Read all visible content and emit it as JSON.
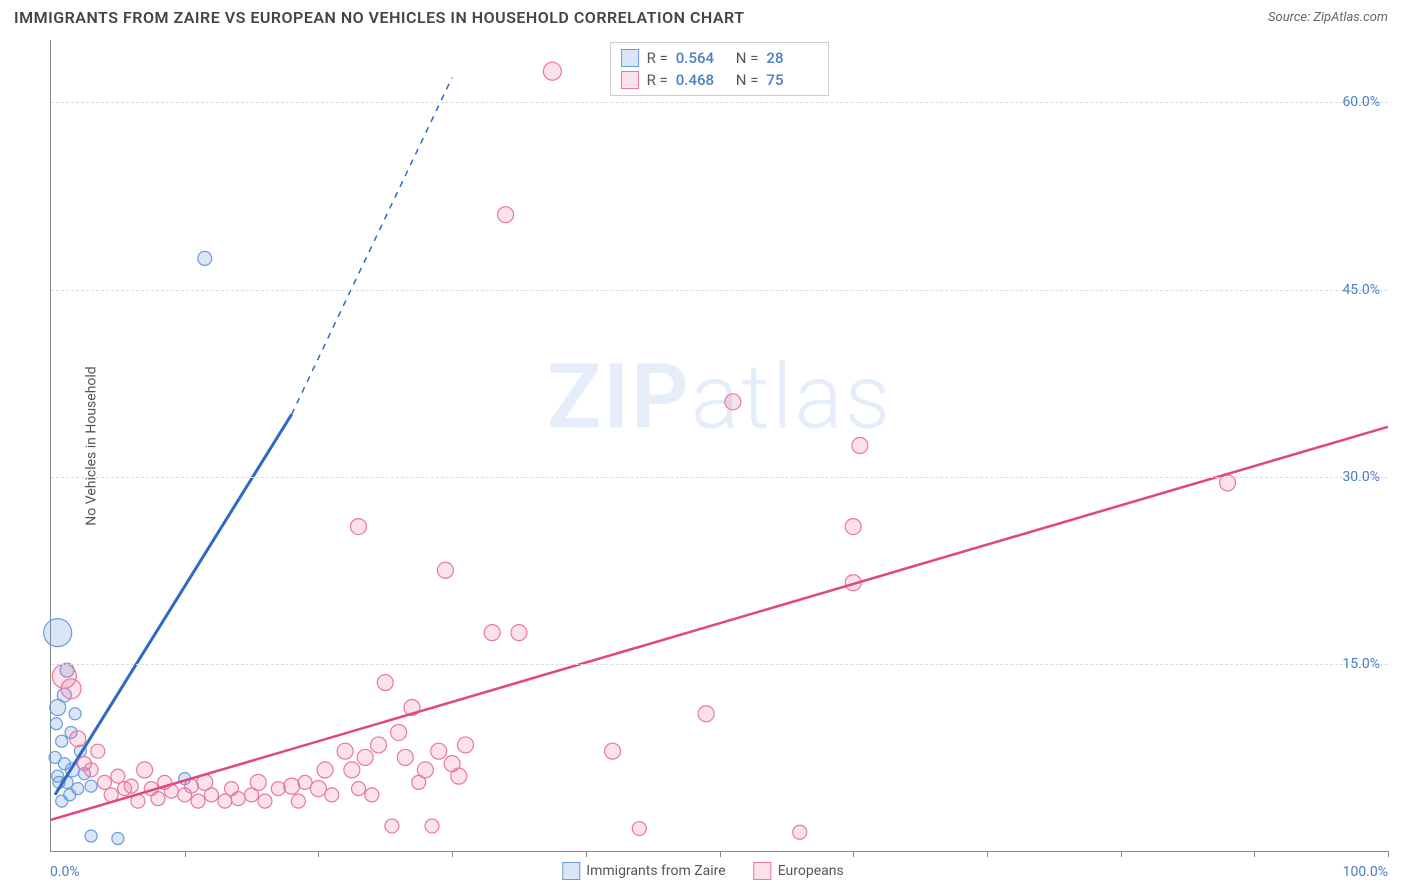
{
  "header": {
    "title": "IMMIGRANTS FROM ZAIRE VS EUROPEAN NO VEHICLES IN HOUSEHOLD CORRELATION CHART",
    "source_label": "Source: ZipAtlas.com"
  },
  "chart": {
    "type": "scatter",
    "ylabel": "No Vehicles in Household",
    "x_min_label": "0.0%",
    "x_max_label": "100.0%",
    "xlim": [
      0,
      100
    ],
    "ylim": [
      0,
      65
    ],
    "y_ticks": [
      {
        "v": 15,
        "label": "15.0%"
      },
      {
        "v": 30,
        "label": "30.0%"
      },
      {
        "v": 45,
        "label": "45.0%"
      },
      {
        "v": 60,
        "label": "60.0%"
      }
    ],
    "x_tick_marks": [
      10,
      20,
      30,
      40,
      50,
      60,
      70,
      80,
      90,
      100
    ],
    "background_color": "#ffffff",
    "grid_color": "#dddddd",
    "axis_color": "#888888",
    "tick_label_color": "#4a7fc4",
    "watermark": {
      "prefix": "ZIP",
      "suffix": "atlas"
    },
    "series": [
      {
        "id": "zaire",
        "legend_label": "Immigrants from Zaire",
        "marker_fill": "rgba(106,156,220,0.25)",
        "marker_stroke": "#6a9cdc",
        "line_color": "#2e6bc0",
        "line_width": 3,
        "dash_after": true,
        "r_label": "R =",
        "r_value": "0.564",
        "n_label": "N =",
        "n_value": "28",
        "trend": {
          "x1": 0.3,
          "y1": 4.5,
          "x2": 18,
          "y2": 35,
          "x3": 30,
          "y3": 62
        },
        "points": [
          {
            "x": 0.5,
            "y": 17.5,
            "r": 14
          },
          {
            "x": 1.2,
            "y": 14.5,
            "r": 7
          },
          {
            "x": 1.0,
            "y": 12.5,
            "r": 7
          },
          {
            "x": 0.5,
            "y": 11.5,
            "r": 8
          },
          {
            "x": 1.8,
            "y": 11.0,
            "r": 6
          },
          {
            "x": 0.4,
            "y": 10.2,
            "r": 6
          },
          {
            "x": 1.5,
            "y": 9.5,
            "r": 6
          },
          {
            "x": 0.8,
            "y": 8.8,
            "r": 6
          },
          {
            "x": 2.2,
            "y": 8.0,
            "r": 6
          },
          {
            "x": 0.3,
            "y": 7.5,
            "r": 6
          },
          {
            "x": 1.0,
            "y": 7.0,
            "r": 6
          },
          {
            "x": 1.6,
            "y": 6.5,
            "r": 7
          },
          {
            "x": 0.5,
            "y": 6.0,
            "r": 6
          },
          {
            "x": 2.5,
            "y": 6.2,
            "r": 6
          },
          {
            "x": 1.2,
            "y": 5.5,
            "r": 6
          },
          {
            "x": 0.6,
            "y": 5.5,
            "r": 6
          },
          {
            "x": 2.0,
            "y": 5.0,
            "r": 6
          },
          {
            "x": 1.4,
            "y": 4.5,
            "r": 6
          },
          {
            "x": 3.0,
            "y": 5.2,
            "r": 6
          },
          {
            "x": 0.8,
            "y": 4.0,
            "r": 6
          },
          {
            "x": 3.0,
            "y": 1.2,
            "r": 6
          },
          {
            "x": 5.0,
            "y": 1.0,
            "r": 6
          },
          {
            "x": 10.0,
            "y": 5.8,
            "r": 6
          },
          {
            "x": 11.5,
            "y": 47.5,
            "r": 7
          }
        ]
      },
      {
        "id": "european",
        "legend_label": "Europeans",
        "marker_fill": "rgba(234,120,160,0.22)",
        "marker_stroke": "#ea78a0",
        "line_color": "#e2457f",
        "line_width": 2.5,
        "dash_after": false,
        "r_label": "R =",
        "r_value": "0.468",
        "n_label": "N =",
        "n_value": "75",
        "trend": {
          "x1": 0,
          "y1": 2.5,
          "x2": 100,
          "y2": 34
        },
        "points": [
          {
            "x": 1.0,
            "y": 14.0,
            "r": 12
          },
          {
            "x": 1.5,
            "y": 13.0,
            "r": 10
          },
          {
            "x": 2.0,
            "y": 9.0,
            "r": 8
          },
          {
            "x": 2.5,
            "y": 7.0,
            "r": 7
          },
          {
            "x": 3.0,
            "y": 6.5,
            "r": 7
          },
          {
            "x": 3.5,
            "y": 8.0,
            "r": 7
          },
          {
            "x": 4.0,
            "y": 5.5,
            "r": 7
          },
          {
            "x": 4.5,
            "y": 4.5,
            "r": 7
          },
          {
            "x": 5.0,
            "y": 6.0,
            "r": 7
          },
          {
            "x": 5.5,
            "y": 5.0,
            "r": 7
          },
          {
            "x": 6.0,
            "y": 5.2,
            "r": 7
          },
          {
            "x": 6.5,
            "y": 4.0,
            "r": 7
          },
          {
            "x": 7.0,
            "y": 6.5,
            "r": 8
          },
          {
            "x": 7.5,
            "y": 5.0,
            "r": 7
          },
          {
            "x": 8.0,
            "y": 4.2,
            "r": 7
          },
          {
            "x": 8.5,
            "y": 5.5,
            "r": 7
          },
          {
            "x": 9.0,
            "y": 4.8,
            "r": 7
          },
          {
            "x": 10.0,
            "y": 4.5,
            "r": 7
          },
          {
            "x": 10.5,
            "y": 5.2,
            "r": 7
          },
          {
            "x": 11.0,
            "y": 4.0,
            "r": 7
          },
          {
            "x": 11.5,
            "y": 5.5,
            "r": 8
          },
          {
            "x": 12.0,
            "y": 4.5,
            "r": 7
          },
          {
            "x": 13.0,
            "y": 4.0,
            "r": 7
          },
          {
            "x": 13.5,
            "y": 5.0,
            "r": 7
          },
          {
            "x": 14.0,
            "y": 4.2,
            "r": 7
          },
          {
            "x": 15.0,
            "y": 4.5,
            "r": 7
          },
          {
            "x": 15.5,
            "y": 5.5,
            "r": 8
          },
          {
            "x": 16.0,
            "y": 4.0,
            "r": 7
          },
          {
            "x": 17.0,
            "y": 5.0,
            "r": 7
          },
          {
            "x": 18.0,
            "y": 5.2,
            "r": 8
          },
          {
            "x": 18.5,
            "y": 4.0,
            "r": 7
          },
          {
            "x": 19.0,
            "y": 5.5,
            "r": 7
          },
          {
            "x": 20.0,
            "y": 5.0,
            "r": 8
          },
          {
            "x": 20.5,
            "y": 6.5,
            "r": 8
          },
          {
            "x": 21.0,
            "y": 4.5,
            "r": 7
          },
          {
            "x": 22.0,
            "y": 8.0,
            "r": 8
          },
          {
            "x": 22.5,
            "y": 6.5,
            "r": 8
          },
          {
            "x": 23.0,
            "y": 5.0,
            "r": 7
          },
          {
            "x": 23.5,
            "y": 7.5,
            "r": 8
          },
          {
            "x": 24.0,
            "y": 4.5,
            "r": 7
          },
          {
            "x": 24.5,
            "y": 8.5,
            "r": 8
          },
          {
            "x": 25.0,
            "y": 13.5,
            "r": 8
          },
          {
            "x": 25.5,
            "y": 2.0,
            "r": 7
          },
          {
            "x": 26.0,
            "y": 9.5,
            "r": 8
          },
          {
            "x": 26.5,
            "y": 7.5,
            "r": 8
          },
          {
            "x": 27.0,
            "y": 11.5,
            "r": 8
          },
          {
            "x": 27.5,
            "y": 5.5,
            "r": 7
          },
          {
            "x": 28.0,
            "y": 6.5,
            "r": 8
          },
          {
            "x": 28.5,
            "y": 2.0,
            "r": 7
          },
          {
            "x": 29.0,
            "y": 8.0,
            "r": 8
          },
          {
            "x": 30.0,
            "y": 7.0,
            "r": 8
          },
          {
            "x": 30.5,
            "y": 6.0,
            "r": 8
          },
          {
            "x": 31.0,
            "y": 8.5,
            "r": 8
          },
          {
            "x": 23.0,
            "y": 26.0,
            "r": 8
          },
          {
            "x": 29.5,
            "y": 22.5,
            "r": 8
          },
          {
            "x": 33.0,
            "y": 17.5,
            "r": 8
          },
          {
            "x": 34.0,
            "y": 51.0,
            "r": 8
          },
          {
            "x": 35.0,
            "y": 17.5,
            "r": 8
          },
          {
            "x": 37.5,
            "y": 62.5,
            "r": 9
          },
          {
            "x": 42.0,
            "y": 8.0,
            "r": 8
          },
          {
            "x": 44.0,
            "y": 1.8,
            "r": 7
          },
          {
            "x": 49.0,
            "y": 11.0,
            "r": 8
          },
          {
            "x": 51.0,
            "y": 36.0,
            "r": 8
          },
          {
            "x": 56.0,
            "y": 1.5,
            "r": 7
          },
          {
            "x": 60.0,
            "y": 21.5,
            "r": 8
          },
          {
            "x": 60.0,
            "y": 26.0,
            "r": 8
          },
          {
            "x": 60.5,
            "y": 32.5,
            "r": 8
          },
          {
            "x": 88.0,
            "y": 29.5,
            "r": 8
          }
        ]
      }
    ]
  }
}
